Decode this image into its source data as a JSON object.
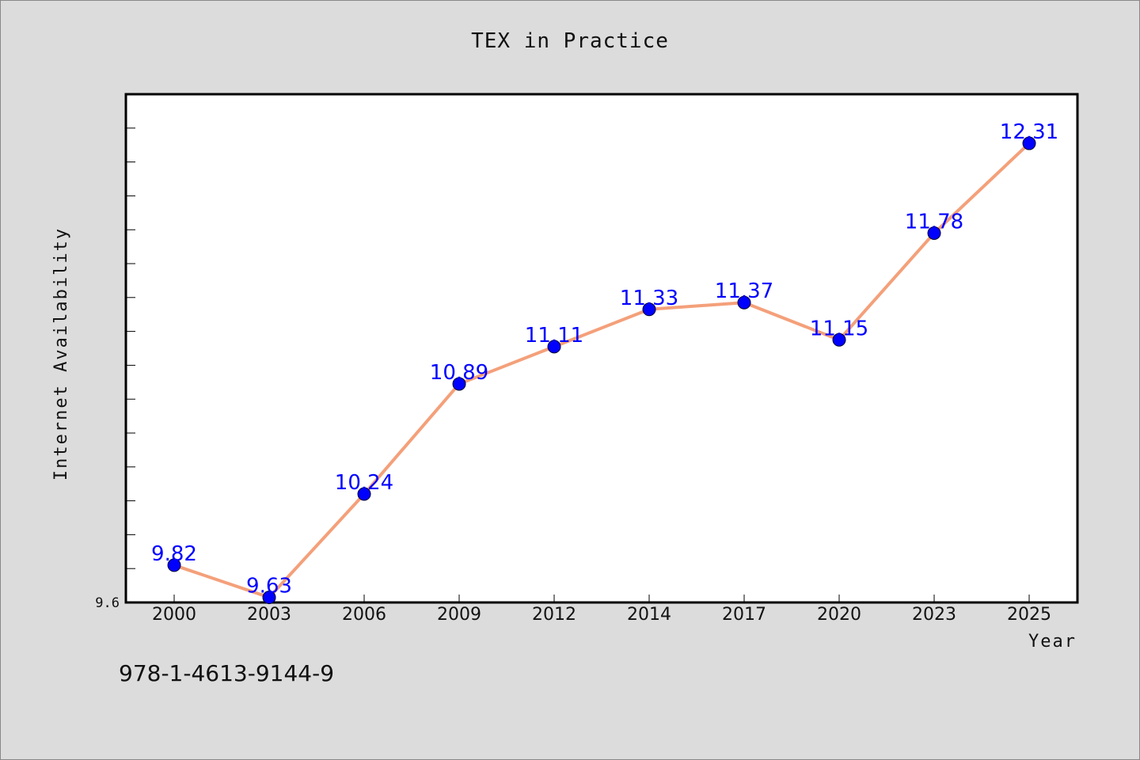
{
  "chart_data": {
    "type": "line",
    "title": "TEX in Practice",
    "xlabel": "Year",
    "ylabel": "Internet Availability",
    "categories": [
      "2000",
      "2003",
      "2006",
      "2009",
      "2012",
      "2014",
      "2017",
      "2020",
      "2023",
      "2025"
    ],
    "series": [
      {
        "values": [
          9.82,
          9.63,
          10.24,
          10.89,
          11.11,
          11.33,
          11.37,
          11.15,
          11.78,
          12.31
        ],
        "data_labels": [
          "9.82",
          "9.63",
          "10.24",
          "10.89",
          "11.11",
          "11.33",
          "11.37",
          "11.15",
          "11.78",
          "12.31"
        ]
      }
    ],
    "ylim": [
      9.6,
      12.6
    ],
    "y_tick_labels": [
      "9.6"
    ],
    "grid": false,
    "line_color": "#f4a07a",
    "marker_color": "#0000ff",
    "label_color": "#0000ff"
  },
  "footer_id": "978-1-4613-9144-9"
}
